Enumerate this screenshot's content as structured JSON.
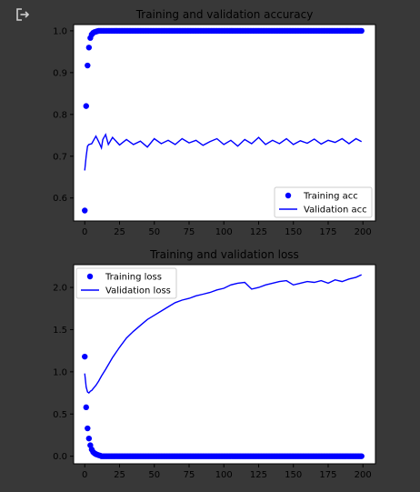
{
  "output_icon": "output-redirect-icon",
  "colors": {
    "background": "#383838",
    "plot_bg": "#ffffff",
    "series": "#0000ff"
  },
  "chart_data": [
    {
      "type": "scatter+line",
      "title": "Training and validation accuracy",
      "xlabel": "",
      "ylabel": "",
      "xlim": [
        -8,
        209
      ],
      "ylim": [
        0.545,
        1.015
      ],
      "xticks": [
        0,
        25,
        50,
        75,
        100,
        125,
        150,
        175,
        200
      ],
      "yticks": [
        0.6,
        0.7,
        0.8,
        0.9,
        1.0
      ],
      "ytick_labels": [
        "0.6",
        "0.7",
        "0.8",
        "0.9",
        "1.0"
      ],
      "legend": {
        "position": "bottom-right"
      },
      "grid": false,
      "series": [
        {
          "name": "Training acc",
          "style": "points",
          "x_start": 0,
          "x_end": 199,
          "head": [
            0.57,
            0.82,
            0.917,
            0.96,
            0.983,
            0.991,
            0.995,
            0.997,
            0.998,
            0.999
          ],
          "tail_value": 1.0
        },
        {
          "name": "Validation acc",
          "style": "line",
          "x": [
            0,
            1,
            2,
            3,
            5,
            8,
            10,
            12,
            13,
            15,
            17,
            20,
            25,
            30,
            35,
            40,
            45,
            50,
            55,
            60,
            65,
            70,
            75,
            80,
            85,
            90,
            95,
            100,
            105,
            110,
            115,
            120,
            125,
            130,
            135,
            140,
            145,
            150,
            155,
            160,
            165,
            170,
            175,
            180,
            185,
            190,
            195,
            199
          ],
          "y": [
            0.666,
            0.7,
            0.724,
            0.728,
            0.73,
            0.748,
            0.735,
            0.72,
            0.74,
            0.752,
            0.728,
            0.745,
            0.727,
            0.74,
            0.728,
            0.736,
            0.722,
            0.742,
            0.73,
            0.738,
            0.728,
            0.742,
            0.732,
            0.738,
            0.726,
            0.735,
            0.742,
            0.728,
            0.738,
            0.724,
            0.74,
            0.73,
            0.745,
            0.728,
            0.738,
            0.73,
            0.742,
            0.728,
            0.737,
            0.731,
            0.741,
            0.729,
            0.738,
            0.733,
            0.742,
            0.73,
            0.742,
            0.735
          ]
        }
      ]
    },
    {
      "type": "scatter+line",
      "title": "Training and validation loss",
      "xlabel": "",
      "ylabel": "",
      "xlim": [
        -8,
        209
      ],
      "ylim": [
        -0.09,
        2.27
      ],
      "xticks": [
        0,
        25,
        50,
        75,
        100,
        125,
        150,
        175,
        200
      ],
      "yticks": [
        0.0,
        0.5,
        1.0,
        1.5,
        2.0
      ],
      "ytick_labels": [
        "0.0",
        "0.5",
        "1.0",
        "1.5",
        "2.0"
      ],
      "legend": {
        "position": "top-left"
      },
      "grid": false,
      "series": [
        {
          "name": "Training loss",
          "style": "points",
          "x_start": 0,
          "x_end": 199,
          "head": [
            1.18,
            0.58,
            0.33,
            0.21,
            0.13,
            0.08,
            0.05,
            0.035,
            0.025,
            0.018,
            0.012,
            0.008
          ],
          "tail_value": 0.0
        },
        {
          "name": "Validation loss",
          "style": "line",
          "x": [
            0,
            1,
            2,
            3,
            4,
            5,
            6,
            8,
            10,
            12,
            15,
            20,
            25,
            30,
            35,
            40,
            45,
            50,
            55,
            60,
            65,
            70,
            75,
            80,
            85,
            90,
            95,
            100,
            105,
            110,
            115,
            120,
            125,
            130,
            135,
            140,
            145,
            150,
            155,
            160,
            165,
            170,
            175,
            180,
            185,
            190,
            195,
            199
          ],
          "y": [
            0.98,
            0.82,
            0.76,
            0.75,
            0.77,
            0.78,
            0.8,
            0.84,
            0.89,
            0.95,
            1.03,
            1.17,
            1.29,
            1.4,
            1.48,
            1.55,
            1.62,
            1.67,
            1.72,
            1.77,
            1.82,
            1.85,
            1.87,
            1.9,
            1.92,
            1.94,
            1.97,
            1.99,
            2.03,
            2.05,
            2.06,
            1.98,
            2.0,
            2.03,
            2.05,
            2.07,
            2.08,
            2.03,
            2.05,
            2.07,
            2.06,
            2.08,
            2.05,
            2.09,
            2.07,
            2.1,
            2.12,
            2.15
          ]
        }
      ]
    }
  ]
}
